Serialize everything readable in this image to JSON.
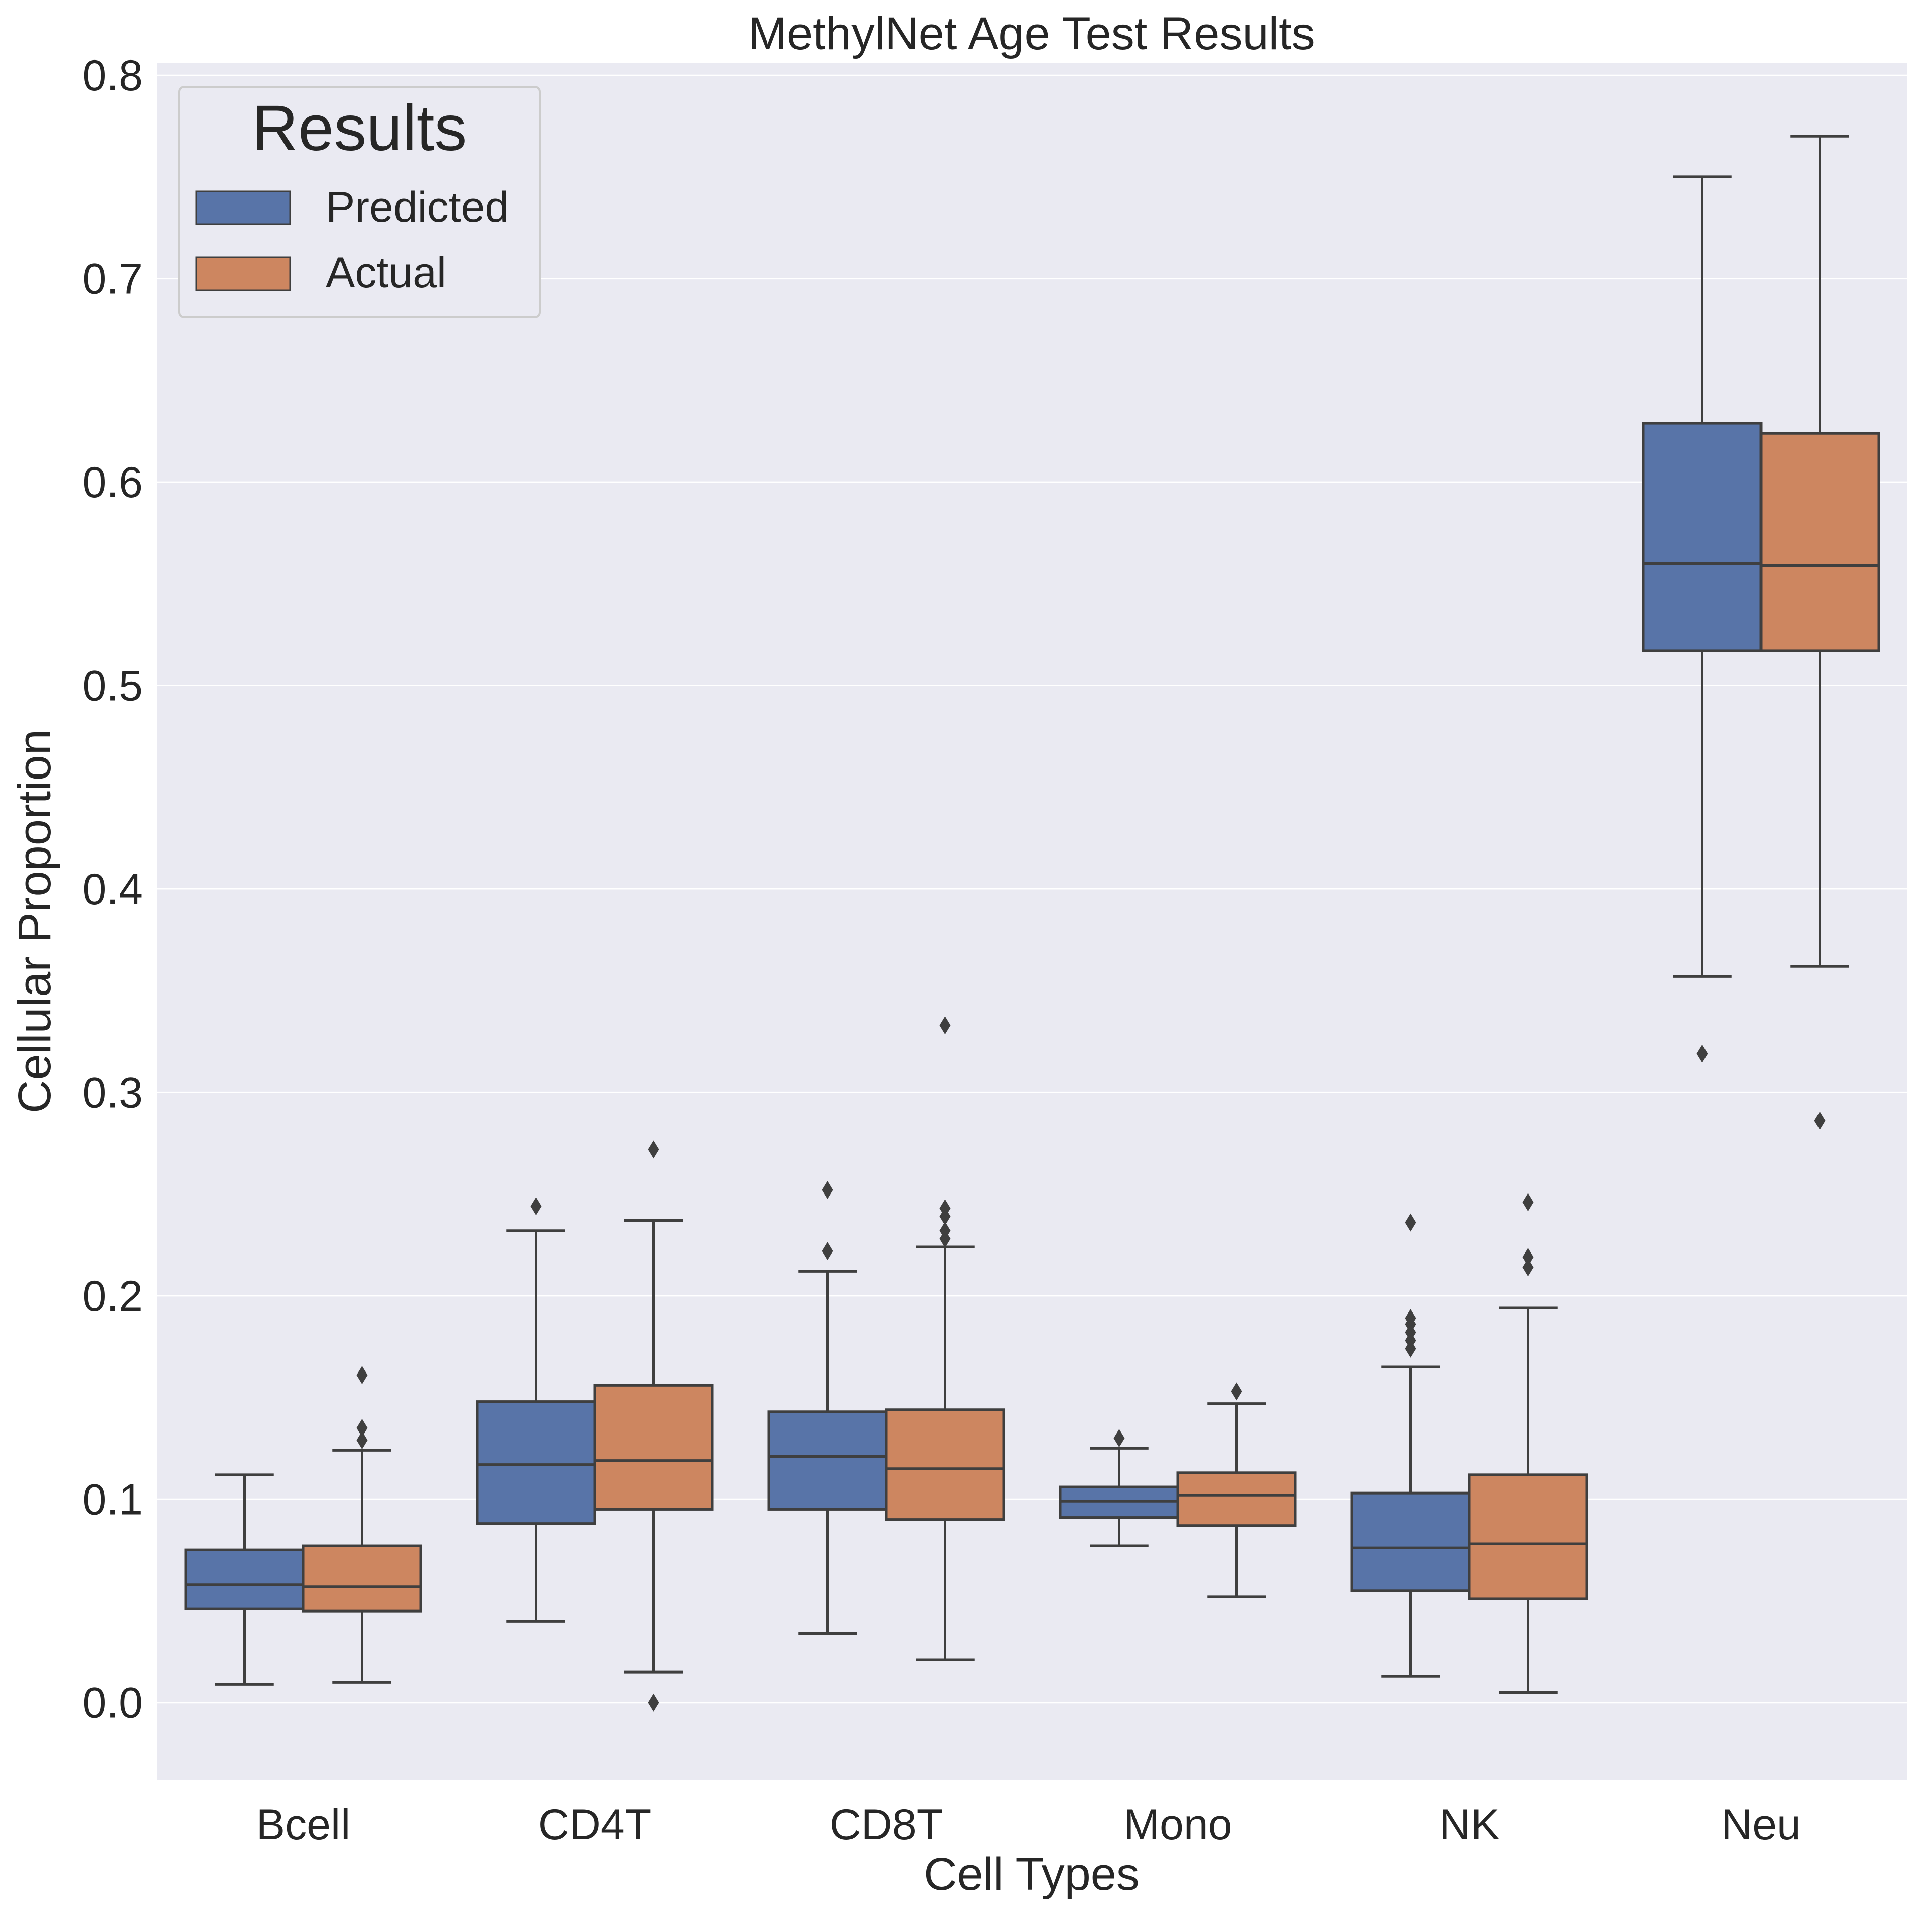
{
  "chart_data": {
    "type": "box",
    "title": "MethylNet Age Test Results",
    "xlabel": "Cell Types",
    "ylabel": "Cellular Proportion",
    "ylim": [
      -0.038,
      0.806
    ],
    "yticks": [
      "0.0",
      "0.1",
      "0.2",
      "0.3",
      "0.4",
      "0.5",
      "0.6",
      "0.7",
      "0.8"
    ],
    "grid": true,
    "categories": [
      "Bcell",
      "CD4T",
      "CD8T",
      "Mono",
      "NK",
      "Neu"
    ],
    "legend": {
      "title": "Results",
      "position": "top-left",
      "entries": [
        "Predicted",
        "Actual"
      ]
    },
    "colors": {
      "Predicted": "#5874a8",
      "Actual": "#cd8660",
      "background": "#eaeaf2",
      "grid": "#ffffff",
      "line": "#3f3f3f"
    },
    "series": [
      {
        "name": "Predicted",
        "boxes": [
          {
            "whislo": 0.009,
            "q1": 0.046,
            "med": 0.058,
            "q3": 0.075,
            "whishi": 0.112,
            "fliers": []
          },
          {
            "whislo": 0.04,
            "q1": 0.088,
            "med": 0.117,
            "q3": 0.148,
            "whishi": 0.232,
            "fliers": [
              0.244
            ]
          },
          {
            "whislo": 0.034,
            "q1": 0.095,
            "med": 0.121,
            "q3": 0.143,
            "whishi": 0.212,
            "fliers": [
              0.222,
              0.252
            ]
          },
          {
            "whislo": 0.077,
            "q1": 0.091,
            "med": 0.099,
            "q3": 0.106,
            "whishi": 0.125,
            "fliers": [
              0.13
            ]
          },
          {
            "whislo": 0.013,
            "q1": 0.055,
            "med": 0.076,
            "q3": 0.103,
            "whishi": 0.165,
            "fliers": [
              0.174,
              0.178,
              0.182,
              0.186,
              0.189,
              0.236
            ]
          },
          {
            "whislo": 0.357,
            "q1": 0.517,
            "med": 0.56,
            "q3": 0.629,
            "whishi": 0.75,
            "fliers": [
              0.319
            ]
          }
        ]
      },
      {
        "name": "Actual",
        "boxes": [
          {
            "whislo": 0.01,
            "q1": 0.045,
            "med": 0.057,
            "q3": 0.077,
            "whishi": 0.124,
            "fliers": [
              0.129,
              0.135,
              0.161
            ]
          },
          {
            "whislo": 0.015,
            "q1": 0.095,
            "med": 0.119,
            "q3": 0.156,
            "whishi": 0.237,
            "fliers": [
              0.0,
              0.272
            ]
          },
          {
            "whislo": 0.021,
            "q1": 0.09,
            "med": 0.115,
            "q3": 0.144,
            "whishi": 0.224,
            "fliers": [
              0.228,
              0.232,
              0.239,
              0.243,
              0.333
            ]
          },
          {
            "whislo": 0.052,
            "q1": 0.087,
            "med": 0.102,
            "q3": 0.113,
            "whishi": 0.147,
            "fliers": [
              0.153
            ]
          },
          {
            "whislo": 0.005,
            "q1": 0.051,
            "med": 0.078,
            "q3": 0.112,
            "whishi": 0.194,
            "fliers": [
              0.214,
              0.219,
              0.246
            ]
          },
          {
            "whislo": 0.362,
            "q1": 0.517,
            "med": 0.559,
            "q3": 0.624,
            "whishi": 0.77,
            "fliers": [
              0.286
            ]
          }
        ]
      }
    ]
  }
}
